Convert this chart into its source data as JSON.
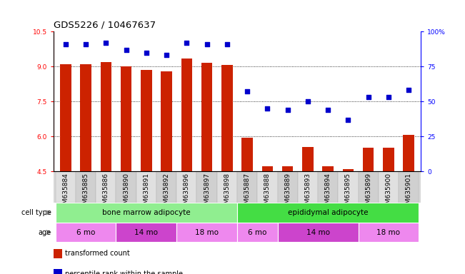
{
  "title": "GDS5226 / 10467637",
  "samples": [
    "GSM635884",
    "GSM635885",
    "GSM635886",
    "GSM635890",
    "GSM635891",
    "GSM635892",
    "GSM635896",
    "GSM635897",
    "GSM635898",
    "GSM635887",
    "GSM635888",
    "GSM635889",
    "GSM635893",
    "GSM635894",
    "GSM635895",
    "GSM635899",
    "GSM635900",
    "GSM635901"
  ],
  "transformed_count": [
    9.1,
    9.1,
    9.2,
    9.0,
    8.85,
    8.8,
    9.35,
    9.15,
    9.05,
    5.95,
    4.7,
    4.7,
    5.55,
    4.7,
    4.6,
    5.5,
    5.5,
    6.05
  ],
  "percentile_rank": [
    91,
    91,
    92,
    87,
    85,
    83,
    92,
    91,
    91,
    57,
    45,
    44,
    50,
    44,
    37,
    53,
    53,
    58
  ],
  "bar_color": "#cc2200",
  "dot_color": "#0000cc",
  "ylim_left": [
    4.5,
    10.5
  ],
  "ylim_right": [
    0,
    100
  ],
  "yticks_left": [
    4.5,
    6.0,
    7.5,
    9.0,
    10.5
  ],
  "yticks_right": [
    0,
    25,
    50,
    75,
    100
  ],
  "ytick_labels_right": [
    "0",
    "25",
    "50",
    "75",
    "100%"
  ],
  "dotted_lines": [
    6.0,
    7.5,
    9.0
  ],
  "cell_types": [
    {
      "label": "bone marrow adipocyte",
      "start": 0,
      "end": 9,
      "color": "#90ee90"
    },
    {
      "label": "epididymal adipocyte",
      "start": 9,
      "end": 18,
      "color": "#44dd44"
    }
  ],
  "ages_bm": [
    {
      "label": "6 mo",
      "start": 0,
      "end": 3
    },
    {
      "label": "14 mo",
      "start": 3,
      "end": 6
    },
    {
      "label": "18 mo",
      "start": 6,
      "end": 9
    }
  ],
  "ages_ep": [
    {
      "label": "6 mo",
      "start": 9,
      "end": 11
    },
    {
      "label": "14 mo",
      "start": 11,
      "end": 15
    },
    {
      "label": "18 mo",
      "start": 15,
      "end": 18
    }
  ],
  "age_color_light": "#ee88ee",
  "age_color_dark": "#cc44cc",
  "legend_items": [
    {
      "label": "transformed count",
      "color": "#cc2200"
    },
    {
      "label": "percentile rank within the sample",
      "color": "#0000cc"
    }
  ],
  "title_fontsize": 9.5,
  "tick_fontsize": 6.5,
  "annot_fontsize": 7.5,
  "bar_width": 0.55
}
